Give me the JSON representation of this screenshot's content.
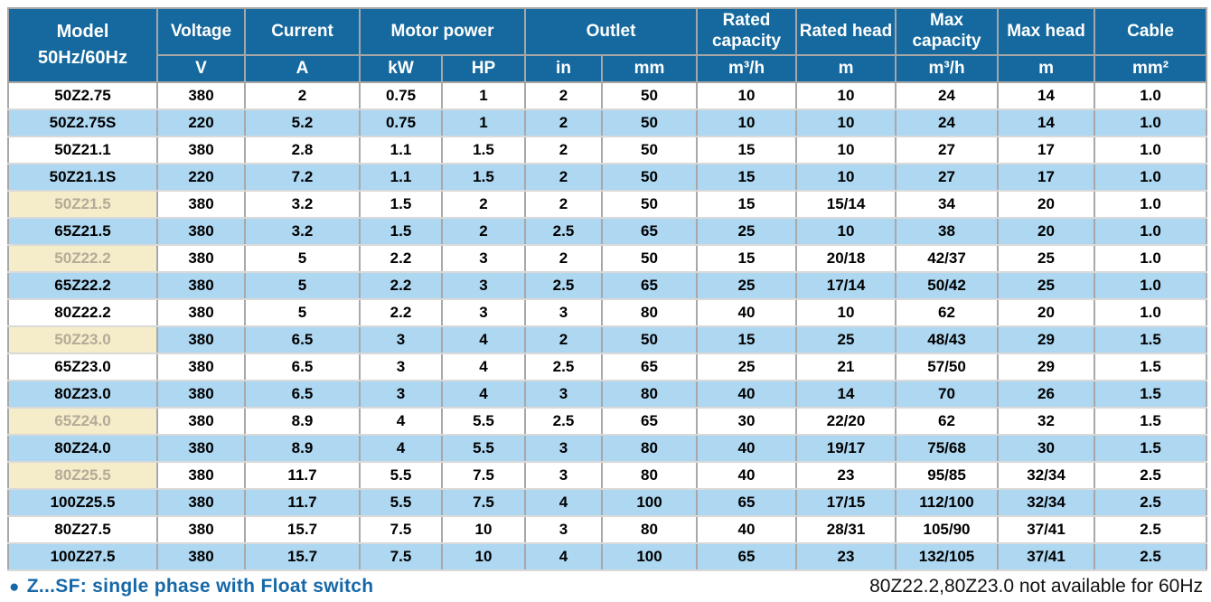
{
  "colors": {
    "header-bg": "#15699e",
    "row-alt": "#aed7f1",
    "hl-bg": "#f5ecc9",
    "hl-text": "#b3ab98",
    "note-blue": "#1568a8"
  },
  "table": {
    "header": {
      "model_line1": "Model",
      "model_line2": "50Hz/60Hz",
      "voltage": "Voltage",
      "voltage_unit": "V",
      "current": "Current",
      "current_unit": "A",
      "motor_power": "Motor power",
      "kw_unit": "kW",
      "hp_unit": "HP",
      "outlet": "Outlet",
      "in_unit": "in",
      "mm_unit": "mm",
      "rated_capacity": "Rated capacity",
      "rated_capacity_unit": "m³/h",
      "rated_head": "Rated head",
      "rated_head_unit": "m",
      "max_capacity": "Max capacity",
      "max_capacity_unit": "m³/h",
      "max_head": "Max head",
      "max_head_unit": "m",
      "cable": "Cable",
      "cable_unit": "mm²"
    },
    "rows": [
      {
        "model": "50Z2.75",
        "highlight": false,
        "values": [
          "380",
          "2",
          "0.75",
          "1",
          "2",
          "50",
          "10",
          "10",
          "24",
          "14",
          "1.0"
        ]
      },
      {
        "model": "50Z2.75S",
        "highlight": false,
        "values": [
          "220",
          "5.2",
          "0.75",
          "1",
          "2",
          "50",
          "10",
          "10",
          "24",
          "14",
          "1.0"
        ]
      },
      {
        "model": "50Z21.1",
        "highlight": false,
        "values": [
          "380",
          "2.8",
          "1.1",
          "1.5",
          "2",
          "50",
          "15",
          "10",
          "27",
          "17",
          "1.0"
        ]
      },
      {
        "model": "50Z21.1S",
        "highlight": false,
        "values": [
          "220",
          "7.2",
          "1.1",
          "1.5",
          "2",
          "50",
          "15",
          "10",
          "27",
          "17",
          "1.0"
        ]
      },
      {
        "model": "50Z21.5",
        "highlight": true,
        "values": [
          "380",
          "3.2",
          "1.5",
          "2",
          "2",
          "50",
          "15",
          "15/14",
          "34",
          "20",
          "1.0"
        ]
      },
      {
        "model": "65Z21.5",
        "highlight": false,
        "values": [
          "380",
          "3.2",
          "1.5",
          "2",
          "2.5",
          "65",
          "25",
          "10",
          "38",
          "20",
          "1.0"
        ]
      },
      {
        "model": "50Z22.2",
        "highlight": true,
        "values": [
          "380",
          "5",
          "2.2",
          "3",
          "2",
          "50",
          "15",
          "20/18",
          "42/37",
          "25",
          "1.0"
        ]
      },
      {
        "model": "65Z22.2",
        "highlight": false,
        "values": [
          "380",
          "5",
          "2.2",
          "3",
          "2.5",
          "65",
          "25",
          "17/14",
          "50/42",
          "25",
          "1.0"
        ]
      },
      {
        "model": "80Z22.2",
        "highlight": false,
        "values": [
          "380",
          "5",
          "2.2",
          "3",
          "3",
          "80",
          "40",
          "10",
          "62",
          "20",
          "1.0"
        ]
      },
      {
        "model": "50Z23.0",
        "highlight": true,
        "values": [
          "380",
          "6.5",
          "3",
          "4",
          "2",
          "50",
          "15",
          "25",
          "48/43",
          "29",
          "1.5"
        ]
      },
      {
        "model": "65Z23.0",
        "highlight": false,
        "values": [
          "380",
          "6.5",
          "3",
          "4",
          "2.5",
          "65",
          "25",
          "21",
          "57/50",
          "29",
          "1.5"
        ]
      },
      {
        "model": "80Z23.0",
        "highlight": false,
        "values": [
          "380",
          "6.5",
          "3",
          "4",
          "3",
          "80",
          "40",
          "14",
          "70",
          "26",
          "1.5"
        ]
      },
      {
        "model": "65Z24.0",
        "highlight": true,
        "values": [
          "380",
          "8.9",
          "4",
          "5.5",
          "2.5",
          "65",
          "30",
          "22/20",
          "62",
          "32",
          "1.5"
        ]
      },
      {
        "model": "80Z24.0",
        "highlight": false,
        "values": [
          "380",
          "8.9",
          "4",
          "5.5",
          "3",
          "80",
          "40",
          "19/17",
          "75/68",
          "30",
          "1.5"
        ]
      },
      {
        "model": "80Z25.5",
        "highlight": true,
        "values": [
          "380",
          "11.7",
          "5.5",
          "7.5",
          "3",
          "80",
          "40",
          "23",
          "95/85",
          "32/34",
          "2.5"
        ]
      },
      {
        "model": "100Z25.5",
        "highlight": false,
        "values": [
          "380",
          "11.7",
          "5.5",
          "7.5",
          "4",
          "100",
          "65",
          "17/15",
          "112/100",
          "32/34",
          "2.5"
        ]
      },
      {
        "model": "80Z27.5",
        "highlight": false,
        "values": [
          "380",
          "15.7",
          "7.5",
          "10",
          "3",
          "80",
          "40",
          "28/31",
          "105/90",
          "37/41",
          "2.5"
        ]
      },
      {
        "model": "100Z27.5",
        "highlight": false,
        "values": [
          "380",
          "15.7",
          "7.5",
          "10",
          "4",
          "100",
          "65",
          "23",
          "132/105",
          "37/41",
          "2.5"
        ]
      }
    ]
  },
  "footer": {
    "bullet": "●",
    "left_note": "Z...SF: single phase with Float switch",
    "right_note": "80Z22.2,80Z23.0 not available for 60Hz"
  }
}
